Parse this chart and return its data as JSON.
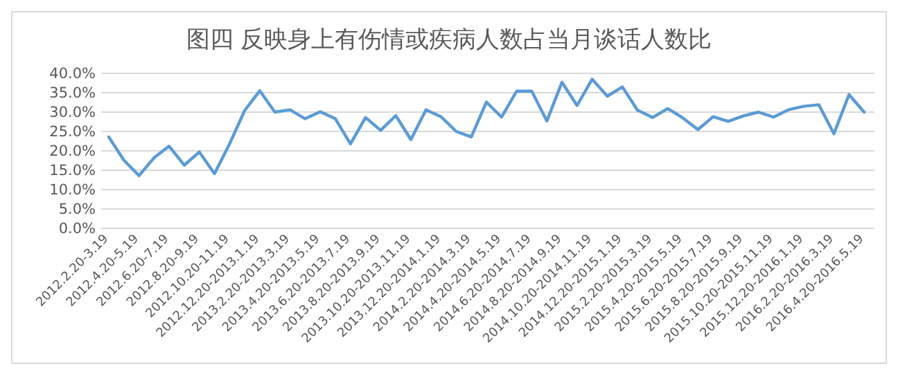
{
  "chart_data": {
    "type": "line",
    "title": "图四  反映身上有伤情或疾病人数占当月谈话人数比",
    "categories": [
      "2012.2.20-3.19",
      null,
      "2012.4.20-5.19",
      null,
      "2012.6.20-7.19",
      null,
      "2012.8.20-9.19",
      null,
      "2012.10.20-11.19",
      null,
      "2012.12.20-2013.1.19",
      null,
      "2013.2.20-2013.3.19",
      null,
      "2013.4.20-2013.5.19",
      null,
      "2013.6.20-2013.7.19",
      null,
      "2013.8.20-2013.9.19",
      null,
      "2013.10.20-2013.11.19",
      null,
      "2013.12.20-2014.1.19",
      null,
      "2014.2.20-2014.3.19",
      null,
      "2014.4.20-2014.5.19",
      null,
      "2014.6.20-2014.7.19",
      null,
      "2014.8.20-2014.9.19",
      null,
      "2014.10.20-2014.11.19",
      null,
      "2014.12.20-2015.1.19",
      null,
      "2015.2.20-2015.3.19",
      null,
      "2015.4.20-2015.5.19",
      null,
      "2015.6.20-2015.7.19",
      null,
      "2015.8.20-2015.9.19",
      null,
      "2015.10.20-2015.11.19",
      null,
      "2015.12.20-2016.1.19",
      null,
      "2016.2.20-2016.3.19",
      null,
      "2016.4.20-2016.5.19"
    ],
    "series": [
      {
        "color": "#5b9bd5",
        "values": [
          23.6,
          17.6,
          13.6,
          18.2,
          21.2,
          16.3,
          19.7,
          14.1,
          21.8,
          30.4,
          35.5,
          30.0,
          30.6,
          28.3,
          30.1,
          28.3,
          21.8,
          28.6,
          25.3,
          29.1,
          22.9,
          30.6,
          28.8,
          25.0,
          23.6,
          32.6,
          28.7,
          35.4,
          35.4,
          27.7,
          37.7,
          31.7,
          38.5,
          34.1,
          36.5,
          30.5,
          28.6,
          30.9,
          28.5,
          25.5,
          28.8,
          27.6,
          29.0,
          30.0,
          28.7,
          30.6,
          31.5,
          31.9,
          24.4,
          34.5,
          30.0
        ]
      }
    ],
    "ylim": [
      0,
      40
    ],
    "yticks": [
      {
        "value": 0,
        "label": "0.0%"
      },
      {
        "value": 5,
        "label": "5.0%"
      },
      {
        "value": 10,
        "label": "10.0%"
      },
      {
        "value": 15,
        "label": "15.0%"
      },
      {
        "value": 20,
        "label": "20.0%"
      },
      {
        "value": 25,
        "label": "25.0%"
      },
      {
        "value": 30,
        "label": "30.0%"
      },
      {
        "value": 35,
        "label": "35.0%"
      },
      {
        "value": 40,
        "label": "40.0%"
      }
    ],
    "grid": "y",
    "marker": "none",
    "line_style": "solid"
  }
}
